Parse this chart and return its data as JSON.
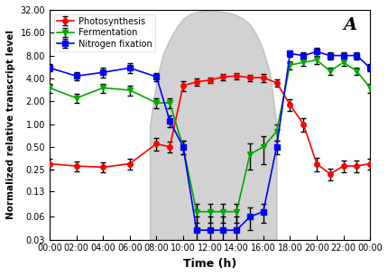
{
  "title_label": "A",
  "xlabel": "Time (h)",
  "ylabel": "Normalized relative transcript level",
  "xtick_labels": [
    "00:00",
    "02:00",
    "04:00",
    "06:00",
    "08:00",
    "10:00",
    "12:00",
    "14:00",
    "16:00",
    "18:00",
    "20:00",
    "22:00",
    "00:00"
  ],
  "ytick_labels": [
    "0.03",
    "0.06",
    "0.13",
    "0.25",
    "0.50",
    "1.00",
    "2.00",
    "4.00",
    "8.00",
    "16.00",
    "32.00"
  ],
  "ytick_values": [
    0.03,
    0.06,
    0.13,
    0.25,
    0.5,
    1.0,
    2.0,
    4.0,
    8.0,
    16.0,
    32.0
  ],
  "time_hours": [
    0,
    2,
    4,
    6,
    8,
    9,
    10,
    11,
    12,
    13,
    14,
    15,
    16,
    17,
    18,
    19,
    20,
    21,
    22,
    23,
    24
  ],
  "photosynthesis": {
    "y": [
      0.3,
      0.28,
      0.27,
      0.3,
      0.55,
      0.5,
      3.2,
      3.6,
      3.8,
      4.2,
      4.3,
      4.1,
      4.1,
      3.5,
      1.8,
      1.0,
      0.3,
      0.22,
      0.28,
      0.28,
      0.3
    ],
    "yerr": [
      0.05,
      0.04,
      0.04,
      0.05,
      0.1,
      0.08,
      0.5,
      0.4,
      0.35,
      0.4,
      0.4,
      0.4,
      0.5,
      0.4,
      0.3,
      0.2,
      0.06,
      0.04,
      0.05,
      0.05,
      0.05
    ],
    "color": "#FF0000",
    "marker": "o",
    "label": "Photosynthesis"
  },
  "fermentation": {
    "y": [
      3.0,
      2.2,
      3.0,
      2.8,
      1.9,
      1.9,
      0.5,
      0.07,
      0.07,
      0.07,
      0.07,
      0.4,
      0.5,
      0.8,
      6.0,
      6.5,
      7.0,
      5.0,
      6.5,
      5.0,
      3.0
    ],
    "yerr": [
      0.4,
      0.3,
      0.4,
      0.4,
      0.3,
      0.3,
      0.1,
      0.02,
      0.02,
      0.02,
      0.02,
      0.15,
      0.2,
      0.2,
      0.7,
      0.7,
      0.8,
      0.6,
      0.7,
      0.6,
      0.4
    ],
    "color": "#00AA00",
    "marker": "v",
    "label": "Fermentation"
  },
  "nitrogen_fixation": {
    "y": [
      5.5,
      4.3,
      4.8,
      5.5,
      4.2,
      1.1,
      0.5,
      0.04,
      0.04,
      0.04,
      0.04,
      0.06,
      0.07,
      0.5,
      8.5,
      8.0,
      9.0,
      8.0,
      8.0,
      8.0,
      5.5
    ],
    "yerr": [
      0.6,
      0.5,
      0.7,
      0.8,
      0.5,
      0.2,
      0.1,
      0.02,
      0.02,
      0.02,
      0.02,
      0.02,
      0.02,
      0.1,
      0.9,
      0.9,
      1.0,
      0.9,
      0.9,
      0.9,
      0.6
    ],
    "color": "#0000FF",
    "marker": "s",
    "label": "Nitrogen fixation"
  },
  "light_curve_x": [
    7.5,
    8.0,
    8.5,
    9.0,
    9.5,
    10.0,
    10.5,
    11.0,
    11.5,
    12.0,
    12.5,
    13.0,
    13.5,
    14.0,
    14.5,
    15.0,
    15.5,
    16.0,
    16.5,
    17.0
  ],
  "light_curve_y": [
    0.5,
    2.0,
    4.5,
    7.0,
    10.0,
    13.0,
    15.0,
    16.0,
    16.5,
    17.0,
    16.5,
    16.0,
    15.5,
    14.5,
    13.0,
    11.0,
    8.0,
    5.0,
    2.5,
    0.5
  ],
  "background_color": "#FFFFFF",
  "plot_bg_color": "#FFFFFF"
}
